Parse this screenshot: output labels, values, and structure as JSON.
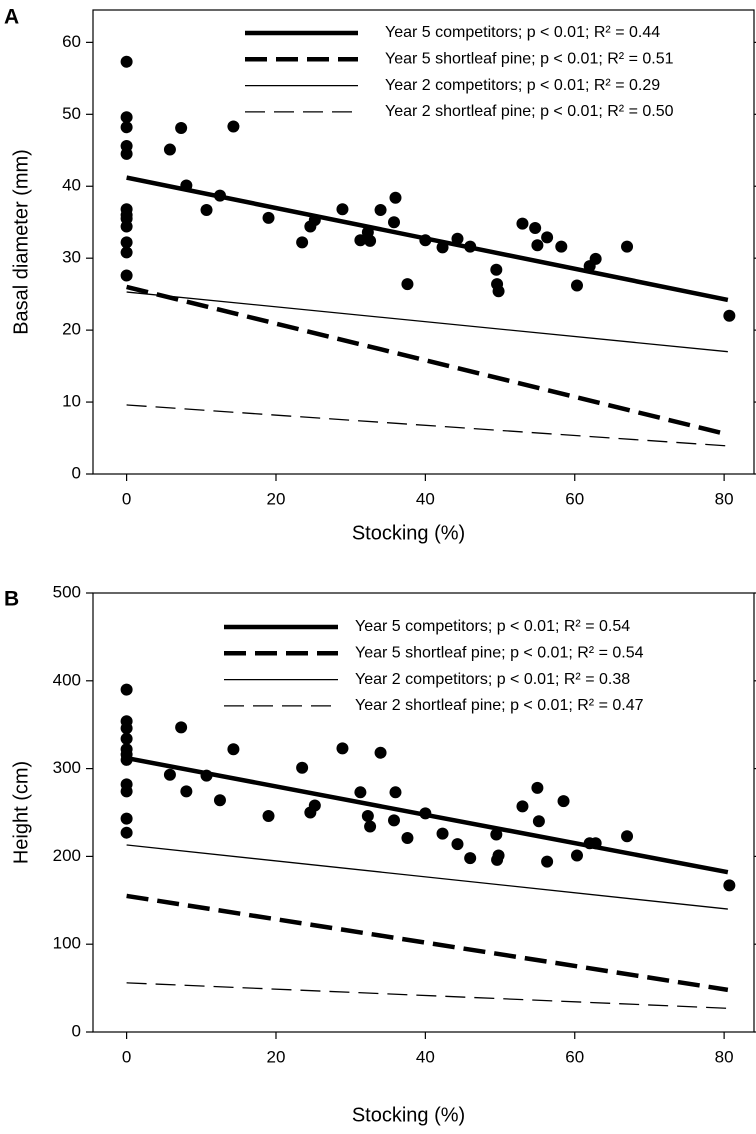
{
  "chart_data": [
    {
      "type": "scatter",
      "panel_label": "A",
      "x_label": "Stocking (%)",
      "y_label": "Basal diameter (mm)",
      "xlim": [
        -4.5,
        84
      ],
      "ylim": [
        0,
        64.5
      ],
      "xticks": [
        0,
        20,
        40,
        60,
        80
      ],
      "yticks": [
        0,
        10,
        20,
        30,
        40,
        50,
        60
      ],
      "legend": "upper right",
      "point_color": "#000000",
      "points": {
        "x": [
          0,
          0,
          0,
          0,
          0,
          0,
          0,
          0,
          0,
          0,
          0,
          0,
          5.8,
          7.3,
          8,
          10.7,
          12.5,
          14.3,
          19,
          23.5,
          24.6,
          25.2,
          28.9,
          31.3,
          32.3,
          32.6,
          34,
          35.8,
          36,
          37.6,
          40,
          42.3,
          44.3,
          46,
          49.5,
          49.6,
          49.8,
          53,
          54.7,
          55,
          56.3,
          58.2,
          60.3,
          62,
          62.8,
          67,
          80.7
        ],
        "values": [
          57.3,
          49.6,
          48.2,
          45.6,
          44.5,
          36.8,
          36,
          35.5,
          34.4,
          32.2,
          30.8,
          27.6,
          45.1,
          48.1,
          40.1,
          36.7,
          38.7,
          48.3,
          35.6,
          32.2,
          34.4,
          35.3,
          36.8,
          32.5,
          33.6,
          32.4,
          36.7,
          35,
          38.4,
          26.4,
          32.5,
          31.5,
          32.7,
          31.6,
          28.4,
          26.4,
          25.4,
          34.8,
          34.2,
          31.8,
          32.9,
          31.6,
          26.2,
          28.9,
          29.9,
          31.6,
          22
        ]
      },
      "series": [
        {
          "name": "Year 5 competitors; p < 0.01; R² = 0.44",
          "color": "#000000",
          "line_style": "solid",
          "line_weight": "heavy",
          "x": [
            0,
            80.5
          ],
          "values": [
            41.2,
            24.2
          ]
        },
        {
          "name": "Year 5 shortleaf pine; p < 0.01; R² = 0.51",
          "color": "#000000",
          "line_style": "dashed",
          "line_weight": "heavy",
          "x": [
            0,
            80.5
          ],
          "values": [
            26,
            5.5
          ]
        },
        {
          "name": "Year 2 competitors; p < 0.01; R² = 0.29",
          "color": "#000000",
          "line_style": "solid",
          "line_weight": "light",
          "x": [
            0,
            80.5
          ],
          "values": [
            25.3,
            17
          ]
        },
        {
          "name": "Year 2 shortleaf pine; p < 0.01; R² = 0.50",
          "color": "#000000",
          "line_style": "dashed",
          "line_weight": "light",
          "x": [
            0,
            80.5
          ],
          "values": [
            9.6,
            3.9
          ]
        }
      ]
    },
    {
      "type": "scatter",
      "panel_label": "B",
      "x_label": "Stocking (%)",
      "y_label": "Height (cm)",
      "xlim": [
        -4.5,
        84
      ],
      "ylim": [
        0,
        500
      ],
      "xticks": [
        0,
        20,
        40,
        60,
        80
      ],
      "yticks": [
        0,
        100,
        200,
        300,
        400,
        500
      ],
      "legend": "upper right",
      "point_color": "#000000",
      "points": {
        "x": [
          0,
          0,
          0,
          0,
          0,
          0,
          0,
          0,
          0,
          0,
          0,
          5.8,
          7.3,
          8,
          10.7,
          12.5,
          14.3,
          19,
          23.5,
          24.6,
          25.2,
          28.9,
          31.3,
          32.3,
          32.6,
          34,
          35.8,
          36,
          37.6,
          40,
          42.3,
          44.3,
          46,
          49.5,
          49.6,
          49.8,
          53,
          55,
          55.2,
          56.3,
          58.5,
          60.3,
          62,
          62.8,
          67,
          80.7
        ],
        "values": [
          390,
          354,
          346,
          334,
          322,
          316,
          310,
          282,
          274,
          243,
          227,
          293,
          347,
          274,
          292,
          264,
          322,
          246,
          301,
          250,
          258,
          323,
          273,
          246,
          234,
          318,
          241,
          273,
          221,
          249,
          226,
          214,
          198,
          225,
          196,
          201,
          257,
          278,
          240,
          194,
          263,
          201,
          215,
          215,
          223,
          167
        ]
      },
      "series": [
        {
          "name": "Year 5 competitors; p < 0.01; R² = 0.54",
          "color": "#000000",
          "line_style": "solid",
          "line_weight": "heavy",
          "x": [
            0,
            80.5
          ],
          "values": [
            312,
            182
          ]
        },
        {
          "name": "Year 5 shortleaf pine; p < 0.01; R² = 0.54",
          "color": "#000000",
          "line_style": "dashed",
          "line_weight": "heavy",
          "x": [
            0,
            80.5
          ],
          "values": [
            155,
            48
          ]
        },
        {
          "name": "Year 2 competitors; p < 0.01; R² = 0.38",
          "color": "#000000",
          "line_style": "solid",
          "line_weight": "light",
          "x": [
            0,
            80.5
          ],
          "values": [
            213,
            140
          ]
        },
        {
          "name": "Year 2 shortleaf pine; p < 0.01; R² = 0.47",
          "color": "#000000",
          "line_style": "dashed",
          "line_weight": "light",
          "x": [
            0,
            80.5
          ],
          "values": [
            56,
            27
          ]
        }
      ]
    }
  ]
}
